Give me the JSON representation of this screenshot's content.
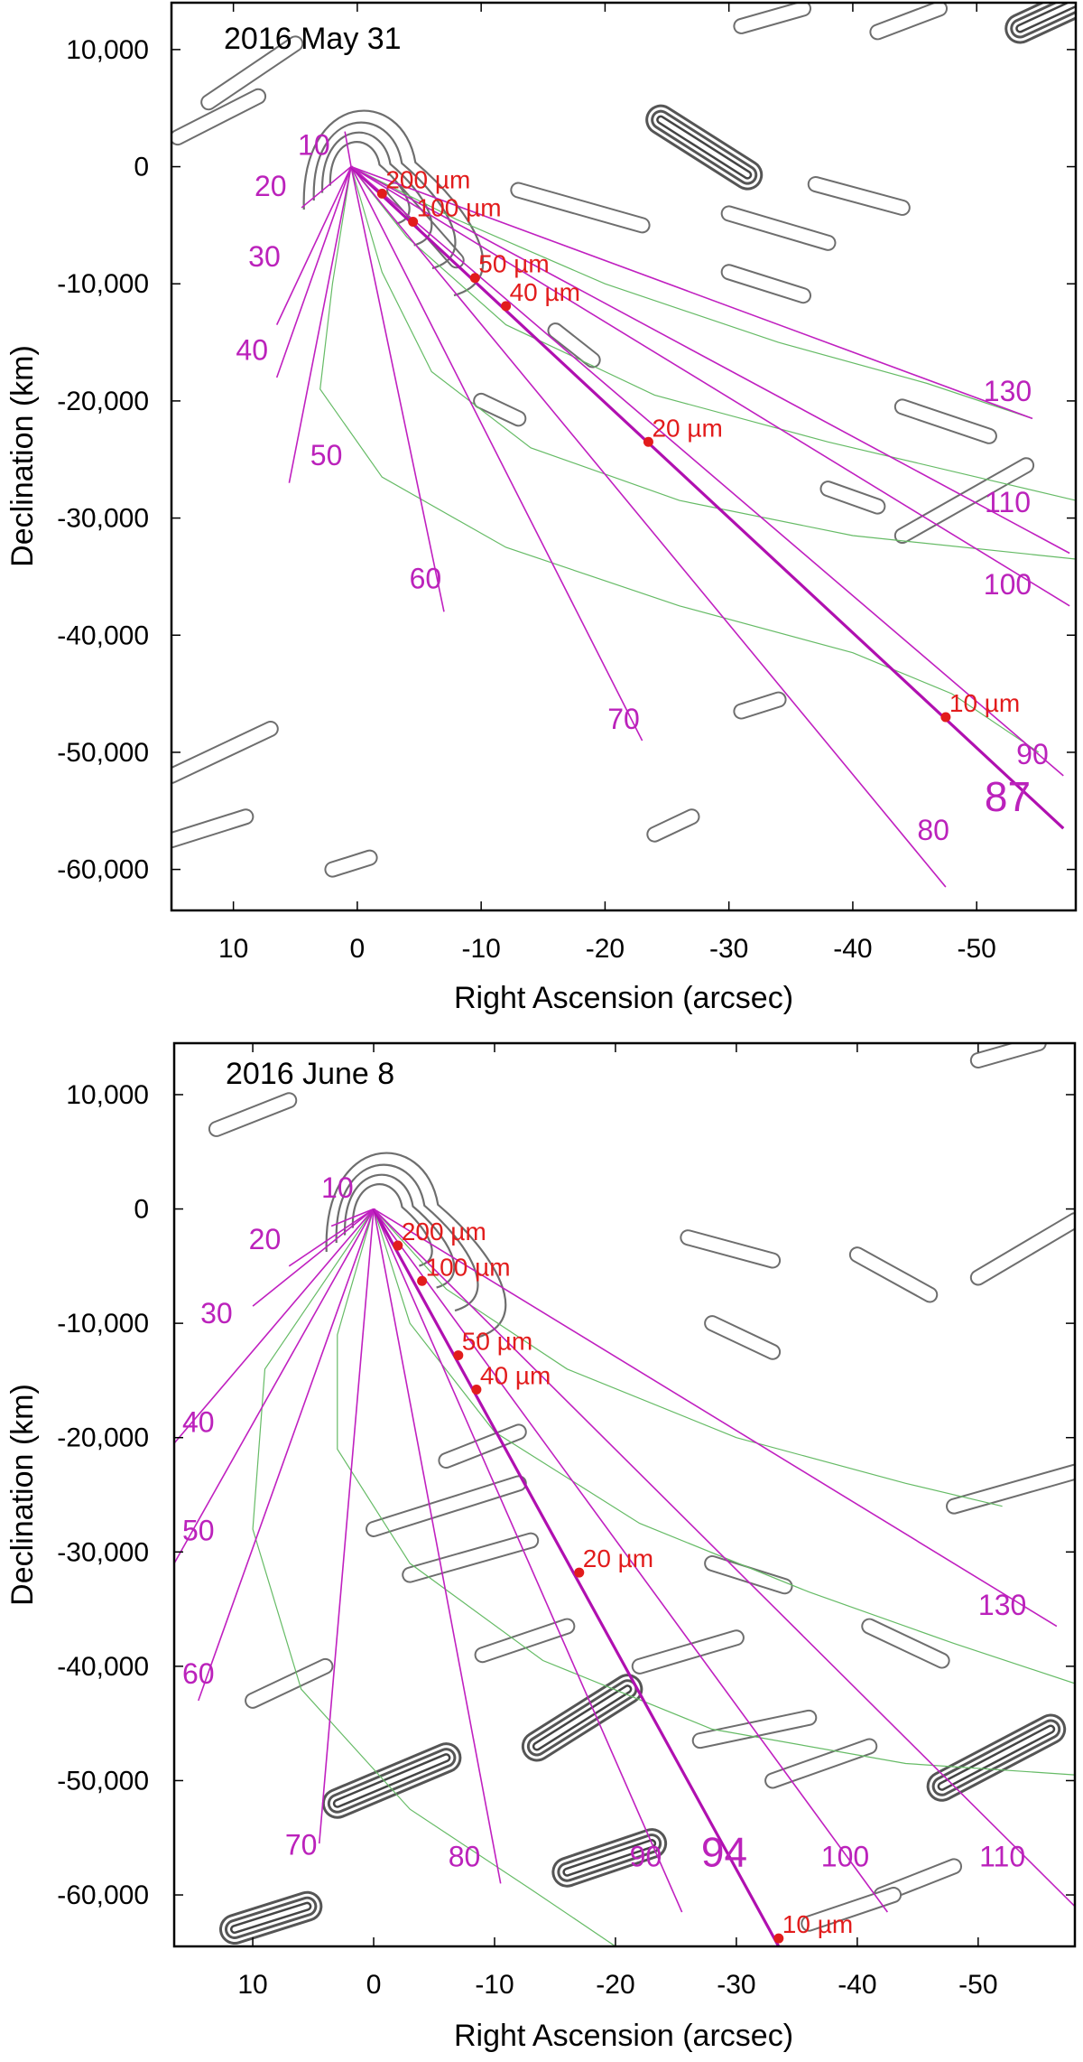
{
  "colors": {
    "syndyne": "#c020c0",
    "synchrone": "#66bb66",
    "contour": "#6e6e6e",
    "particle": "#e21c1c"
  },
  "chart_data": [
    {
      "type": "scatter",
      "title": "2016 May 31",
      "xlabel": "Right Ascension (arcsec)",
      "ylabel": "Declination (km)",
      "xlim": [
        15,
        -58
      ],
      "ylim": [
        -63500,
        14000
      ],
      "x_ticks": [
        10,
        0,
        -10,
        -20,
        -30,
        -40,
        -50
      ],
      "x_tick_labels": [
        "10",
        "0",
        "-10",
        "-20",
        "-30",
        "-40",
        "-50"
      ],
      "y_ticks": [
        10000,
        0,
        -10000,
        -20000,
        -30000,
        -40000,
        -50000,
        -60000
      ],
      "y_tick_labels": [
        "10,000",
        "0",
        "-10,000",
        "-20,000",
        "-30,000",
        "-40,000",
        "-50,000",
        "-60,000"
      ],
      "grid": false,
      "origin": [
        0.5,
        0
      ],
      "syndynes": [
        {
          "label": "10",
          "end": [
            1.0,
            3000
          ],
          "label_pos": [
            3.5,
            1000
          ]
        },
        {
          "label": "20",
          "end": [
            4.5,
            -3500
          ],
          "label_pos": [
            7,
            -2500
          ]
        },
        {
          "label": "30",
          "end": [
            6.5,
            -13500
          ],
          "label_pos": [
            7.5,
            -8500
          ]
        },
        {
          "label": "40",
          "end": [
            6.5,
            -18000
          ],
          "label_pos": [
            8.5,
            -16500
          ]
        },
        {
          "label": "50",
          "end": [
            5.5,
            -27000
          ],
          "label_pos": [
            2.5,
            -25500
          ]
        },
        {
          "label": "60",
          "end": [
            -7.0,
            -38000
          ],
          "label_pos": [
            -5.5,
            -36000
          ]
        },
        {
          "label": "70",
          "end": [
            -23.0,
            -49000
          ],
          "label_pos": [
            -21.5,
            -48000
          ]
        },
        {
          "label": "80",
          "end": [
            -47.5,
            -61500
          ],
          "label_pos": [
            -46.5,
            -57500
          ]
        },
        {
          "label": "87",
          "end": [
            -57.0,
            -56500
          ],
          "label_pos": [
            -52.5,
            -55000
          ],
          "emphasized": true
        },
        {
          "label": "90",
          "end": [
            -57.0,
            -52000
          ],
          "label_pos": [
            -54.5,
            -51000
          ]
        },
        {
          "label": "100",
          "end": [
            -57.5,
            -37500
          ],
          "label_pos": [
            -52.5,
            -36500
          ]
        },
        {
          "label": "110",
          "end": [
            -57.5,
            -33000
          ],
          "label_pos": [
            -52.5,
            -29500
          ]
        },
        {
          "label": "130",
          "end": [
            -54.5,
            -21500
          ],
          "label_pos": [
            -52.5,
            -20000
          ]
        }
      ],
      "synchrones": [
        {
          "points": [
            [
              0.5,
              0
            ],
            [
              -8,
              -4500
            ],
            [
              -20,
              -10000
            ],
            [
              -34,
              -15000
            ],
            [
              -46,
              -18500
            ],
            [
              -54.5,
              -21500
            ]
          ]
        },
        {
          "points": [
            [
              0.5,
              0
            ],
            [
              -4,
              -6000
            ],
            [
              -12,
              -13500
            ],
            [
              -24,
              -19500
            ],
            [
              -38,
              -23500
            ],
            [
              -50,
              -26500
            ],
            [
              -58,
              -28500
            ]
          ]
        },
        {
          "points": [
            [
              0.5,
              0
            ],
            [
              -2,
              -9000
            ],
            [
              -6,
              -17500
            ],
            [
              -14,
              -24000
            ],
            [
              -26,
              -28500
            ],
            [
              -40,
              -31500
            ],
            [
              -58,
              -33500
            ]
          ]
        },
        {
          "points": [
            [
              0.5,
              0
            ],
            [
              2,
              -10000
            ],
            [
              3,
              -19000
            ],
            [
              -2,
              -26500
            ],
            [
              -12,
              -32500
            ],
            [
              -26,
              -37500
            ],
            [
              -40,
              -41500
            ],
            [
              -48,
              -45000
            ],
            [
              -55,
              -50000
            ]
          ]
        }
      ],
      "particles": [
        {
          "label": "200 µm",
          "x": -2.0,
          "y": -2300
        },
        {
          "label": "100 µm",
          "x": -4.5,
          "y": -4700
        },
        {
          "label": "50 µm",
          "x": -9.5,
          "y": -9500
        },
        {
          "label": "40 µm",
          "x": -12.0,
          "y": -11900
        },
        {
          "label": "20 µm",
          "x": -23.5,
          "y": -23500
        },
        {
          "label": "10 µm",
          "x": -47.5,
          "y": -47000
        }
      ],
      "thick_contours": [
        {
          "from": [
            -24.5,
            4000
          ],
          "to": [
            -31.5,
            -700
          ]
        },
        {
          "from": [
            -53.5,
            11800
          ],
          "to": [
            -58,
            14000
          ]
        }
      ],
      "contours": [
        {
          "from": [
            -13,
            -2000
          ],
          "to": [
            -23,
            -5000
          ]
        },
        {
          "from": [
            -37,
            -1500
          ],
          "to": [
            -44,
            -3500
          ]
        },
        {
          "from": [
            -30,
            -4000
          ],
          "to": [
            -38,
            -6500
          ]
        },
        {
          "from": [
            -30,
            -9000
          ],
          "to": [
            -36,
            -11000
          ]
        },
        {
          "from": [
            -44,
            -20500
          ],
          "to": [
            -51,
            -23000
          ]
        },
        {
          "from": [
            -44,
            -31500
          ],
          "to": [
            -54,
            -25500
          ]
        },
        {
          "from": [
            -38,
            -27500
          ],
          "to": [
            -42,
            -29000
          ]
        },
        {
          "from": [
            -31,
            -46500
          ],
          "to": [
            -34,
            -45500
          ]
        },
        {
          "from": [
            -24,
            -57000
          ],
          "to": [
            -27,
            -55500
          ]
        },
        {
          "from": [
            -31,
            12000
          ],
          "to": [
            -36,
            13500
          ]
        },
        {
          "from": [
            -42,
            11500
          ],
          "to": [
            -47,
            13500
          ]
        },
        {
          "from": [
            12,
            5500
          ],
          "to": [
            5,
            10500
          ]
        },
        {
          "from": [
            14.5,
            2500
          ],
          "to": [
            8,
            6000
          ]
        },
        {
          "from": [
            15,
            -52000
          ],
          "to": [
            7,
            -48000
          ]
        },
        {
          "from": [
            15,
            -57500
          ],
          "to": [
            9,
            -55500
          ]
        },
        {
          "from": [
            2,
            -60000
          ],
          "to": [
            -1,
            -59000
          ]
        },
        {
          "from": [
            -3,
            -2000
          ],
          "to": [
            -8,
            -8000
          ]
        },
        {
          "from": [
            -16,
            -14000
          ],
          "to": [
            -19,
            -16500
          ]
        },
        {
          "from": [
            -10,
            -20000
          ],
          "to": [
            -13,
            -21500
          ]
        }
      ]
    },
    {
      "type": "scatter",
      "title": "2016 June 8",
      "xlabel": "Right Ascension (arcsec)",
      "ylabel": "Declination (km)",
      "xlim": [
        16.5,
        -58
      ],
      "ylim": [
        -64500,
        14500
      ],
      "x_ticks": [
        10,
        0,
        -10,
        -20,
        -30,
        -40,
        -50
      ],
      "x_tick_labels": [
        "10",
        "0",
        "-10",
        "-20",
        "-30",
        "-40",
        "-50"
      ],
      "y_ticks": [
        10000,
        0,
        -10000,
        -20000,
        -30000,
        -40000,
        -50000,
        -60000
      ],
      "y_tick_labels": [
        "10,000",
        "0",
        "-10,000",
        "-20,000",
        "-30,000",
        "-40,000",
        "-50,000",
        "-60,000"
      ],
      "grid": false,
      "origin": [
        0,
        0
      ],
      "syndynes": [
        {
          "label": "10",
          "end": [
            3.5,
            -1500
          ],
          "label_pos": [
            3,
            1000
          ]
        },
        {
          "label": "20",
          "end": [
            7,
            -5000
          ],
          "label_pos": [
            9,
            -3500
          ]
        },
        {
          "label": "30",
          "end": [
            10,
            -8500
          ],
          "label_pos": [
            13,
            -10000
          ]
        },
        {
          "label": "40",
          "end": [
            16.5,
            -20500
          ],
          "label_pos": [
            14.5,
            -19500
          ]
        },
        {
          "label": "50",
          "end": [
            16.5,
            -31000
          ],
          "label_pos": [
            14.5,
            -29000
          ]
        },
        {
          "label": "60",
          "end": [
            14.5,
            -43000
          ],
          "label_pos": [
            14.5,
            -41500
          ]
        },
        {
          "label": "70",
          "end": [
            4.5,
            -55500
          ],
          "label_pos": [
            6,
            -56500
          ]
        },
        {
          "label": "80",
          "end": [
            -10.5,
            -59000
          ],
          "label_pos": [
            -7.5,
            -57500
          ]
        },
        {
          "label": "90",
          "end": [
            -25.5,
            -61500
          ],
          "label_pos": [
            -22.5,
            -57500
          ]
        },
        {
          "label": "94",
          "end": [
            -33.5,
            -64500
          ],
          "label_pos": [
            -29,
            -57500
          ],
          "emphasized": true
        },
        {
          "label": "100",
          "end": [
            -42.5,
            -61500
          ],
          "label_pos": [
            -39,
            -57500
          ]
        },
        {
          "label": "110",
          "end": [
            -58,
            -61000
          ],
          "label_pos": [
            -52,
            -57500
          ]
        },
        {
          "label": "130",
          "end": [
            -56.5,
            -36500
          ],
          "label_pos": [
            -52,
            -35500
          ]
        }
      ],
      "synchrones": [
        {
          "points": [
            [
              0,
              0
            ],
            [
              -6,
              -7000
            ],
            [
              -16,
              -14000
            ],
            [
              -30,
              -20000
            ],
            [
              -44,
              -24000
            ],
            [
              -52,
              -26000
            ]
          ]
        },
        {
          "points": [
            [
              0,
              0
            ],
            [
              -3,
              -10000
            ],
            [
              -10,
              -19500
            ],
            [
              -22,
              -27500
            ],
            [
              -36,
              -33500
            ],
            [
              -48,
              -38000
            ],
            [
              -58,
              -41500
            ]
          ]
        },
        {
          "points": [
            [
              0,
              0
            ],
            [
              3,
              -11000
            ],
            [
              3,
              -21000
            ],
            [
              -3,
              -31000
            ],
            [
              -14,
              -39500
            ],
            [
              -28,
              -45500
            ],
            [
              -44,
              -48500
            ],
            [
              -58,
              -49500
            ]
          ]
        },
        {
          "points": [
            [
              0,
              0
            ],
            [
              9,
              -14000
            ],
            [
              10,
              -28000
            ],
            [
              6,
              -42000
            ],
            [
              -3,
              -52500
            ],
            [
              -13,
              -59500
            ],
            [
              -20,
              -64500
            ]
          ]
        }
      ],
      "particles": [
        {
          "label": "200 µm",
          "x": -2.0,
          "y": -3200
        },
        {
          "label": "100 µm",
          "x": -4.0,
          "y": -6300
        },
        {
          "label": "50 µm",
          "x": -7.0,
          "y": -12800
        },
        {
          "label": "40 µm",
          "x": -8.5,
          "y": -15800
        },
        {
          "label": "20 µm",
          "x": -17.0,
          "y": -31800
        },
        {
          "label": "10 µm",
          "x": -33.5,
          "y": -63800
        }
      ],
      "thick_contours": [
        {
          "from": [
            -13.5,
            -47000
          ],
          "to": [
            -21,
            -42000
          ]
        },
        {
          "from": [
            3,
            -52000
          ],
          "to": [
            -6,
            -48000
          ]
        },
        {
          "from": [
            -47,
            -50500
          ],
          "to": [
            -56,
            -45500
          ]
        },
        {
          "from": [
            -16,
            -58000
          ],
          "to": [
            -23,
            -55500
          ]
        },
        {
          "from": [
            11.5,
            -63000
          ],
          "to": [
            5.5,
            -61000
          ]
        }
      ],
      "contours": [
        {
          "from": [
            -26,
            -2500
          ],
          "to": [
            -33,
            -4500
          ]
        },
        {
          "from": [
            -40,
            -4000
          ],
          "to": [
            -46,
            -7500
          ]
        },
        {
          "from": [
            -50,
            -6000
          ],
          "to": [
            -58,
            -1000
          ]
        },
        {
          "from": [
            -28,
            -10000
          ],
          "to": [
            -33,
            -12500
          ]
        },
        {
          "from": [
            -48,
            -26000
          ],
          "to": [
            -58,
            -23000
          ]
        },
        {
          "from": [
            -28,
            -31000
          ],
          "to": [
            -34,
            -33000
          ]
        },
        {
          "from": [
            -41,
            -36500
          ],
          "to": [
            -47,
            -39500
          ]
        },
        {
          "from": [
            -6,
            -22000
          ],
          "to": [
            -12,
            -19500
          ]
        },
        {
          "from": [
            0,
            -28000
          ],
          "to": [
            -12,
            -24000
          ]
        },
        {
          "from": [
            -3,
            -32000
          ],
          "to": [
            -13,
            -29000
          ]
        },
        {
          "from": [
            -9,
            -39000
          ],
          "to": [
            -16,
            -36500
          ]
        },
        {
          "from": [
            -22,
            -40000
          ],
          "to": [
            -30,
            -37500
          ]
        },
        {
          "from": [
            10,
            -43000
          ],
          "to": [
            4,
            -40000
          ]
        },
        {
          "from": [
            -33,
            -50000
          ],
          "to": [
            -41,
            -47000
          ]
        },
        {
          "from": [
            -27,
            -46500
          ],
          "to": [
            -36,
            -44500
          ]
        },
        {
          "from": [
            -42,
            -60000
          ],
          "to": [
            -48,
            -57500
          ]
        },
        {
          "from": [
            -36,
            -62500
          ],
          "to": [
            -43,
            -60000
          ]
        },
        {
          "from": [
            13,
            7000
          ],
          "to": [
            7,
            9500
          ]
        },
        {
          "from": [
            -50,
            13000
          ],
          "to": [
            -55,
            14500
          ]
        }
      ]
    }
  ]
}
